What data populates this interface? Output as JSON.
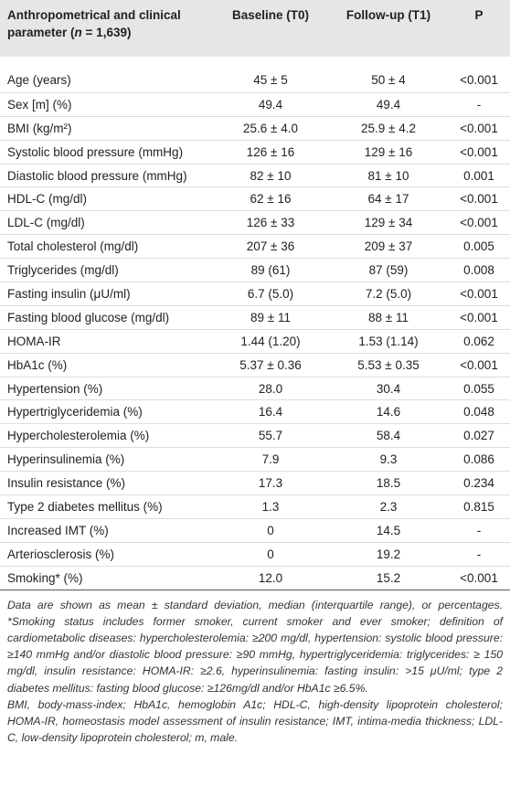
{
  "table": {
    "header_first": [
      "Anthropometrical and clinical parameter (",
      "n",
      " = 1,639)"
    ],
    "header": [
      "Baseline (T0)",
      "Follow-up (T1)",
      "P"
    ],
    "rows": [
      [
        "Age (years)",
        "45 ± 5",
        "50 ± 4",
        "<0.001"
      ],
      [
        "Sex [m] (%)",
        "49.4",
        "49.4",
        "-"
      ],
      [
        "BMI (kg/m²)",
        "25.6 ± 4.0",
        "25.9 ± 4.2",
        "<0.001"
      ],
      [
        "Systolic blood pressure (mmHg)",
        "126 ± 16",
        "129 ± 16",
        "<0.001"
      ],
      [
        "Diastolic blood pressure (mmHg)",
        "82 ± 10",
        "81 ± 10",
        "0.001"
      ],
      [
        "HDL-C (mg/dl)",
        "62 ± 16",
        "64 ± 17",
        "<0.001"
      ],
      [
        "LDL-C (mg/dl)",
        "126 ± 33",
        "129 ± 34",
        "<0.001"
      ],
      [
        "Total cholesterol (mg/dl)",
        "207 ± 36",
        "209 ± 37",
        "0.005"
      ],
      [
        "Triglycerides (mg/dl)",
        "89 (61)",
        "87 (59)",
        "0.008"
      ],
      [
        "Fasting insulin (μU/ml)",
        "6.7 (5.0)",
        "7.2 (5.0)",
        "<0.001"
      ],
      [
        "Fasting blood glucose (mg/dl)",
        "89 ± 11",
        "88 ± 11",
        "<0.001"
      ],
      [
        "HOMA-IR",
        "1.44 (1.20)",
        "1.53 (1.14)",
        "0.062"
      ],
      [
        "HbA1c (%)",
        "5.37 ± 0.36",
        "5.53 ± 0.35",
        "<0.001"
      ],
      [
        "Hypertension (%)",
        "28.0",
        "30.4",
        "0.055"
      ],
      [
        "Hypertriglyceridemia (%)",
        "16.4",
        "14.6",
        "0.048"
      ],
      [
        "Hypercholesterolemia (%)",
        "55.7",
        "58.4",
        "0.027"
      ],
      [
        "Hyperinsulinemia (%)",
        "7.9",
        "9.3",
        "0.086"
      ],
      [
        "Insulin resistance (%)",
        "17.3",
        "18.5",
        "0.234"
      ],
      [
        "Type 2 diabetes mellitus (%)",
        "1.3",
        "2.3",
        "0.815"
      ],
      [
        "Increased IMT (%)",
        "0",
        "14.5",
        "-"
      ],
      [
        "Arteriosclerosis (%)",
        "0",
        "19.2",
        "-"
      ],
      [
        "Smoking* (%)",
        "12.0",
        "15.2",
        "<0.001"
      ]
    ],
    "notes": [
      "Data are shown as mean ± standard deviation, median (interquartile range), or percentages. *Smoking status includes former smoker, current smoker and ever smoker; definition of cardiometabolic diseases: hypercholesterolemia: ≥200 mg/dl, hypertension: systolic blood pressure: ≥140 mmHg and/or diastolic blood pressure: ≥90 mmHg, hypertriglyceridemia: triglycerides: ≥ 150 mg/dl, insulin resistance: HOMA-IR: ≥2.6, hyperinsulinemia: fasting insulin: >15 μU/ml; type 2 diabetes mellitus: fasting blood glucose: ≥126mg/dl and/or HbA1c ≥6.5%.",
      "BMI, body-mass-index; HbA1c, hemoglobin A1c; HDL-C, high-density lipoprotein cholesterol; HOMA-IR, homeostasis model assessment of insulin resistance; IMT, intima-media thickness; LDL-C, low-density lipoprotein cholesterol; m, male."
    ]
  }
}
